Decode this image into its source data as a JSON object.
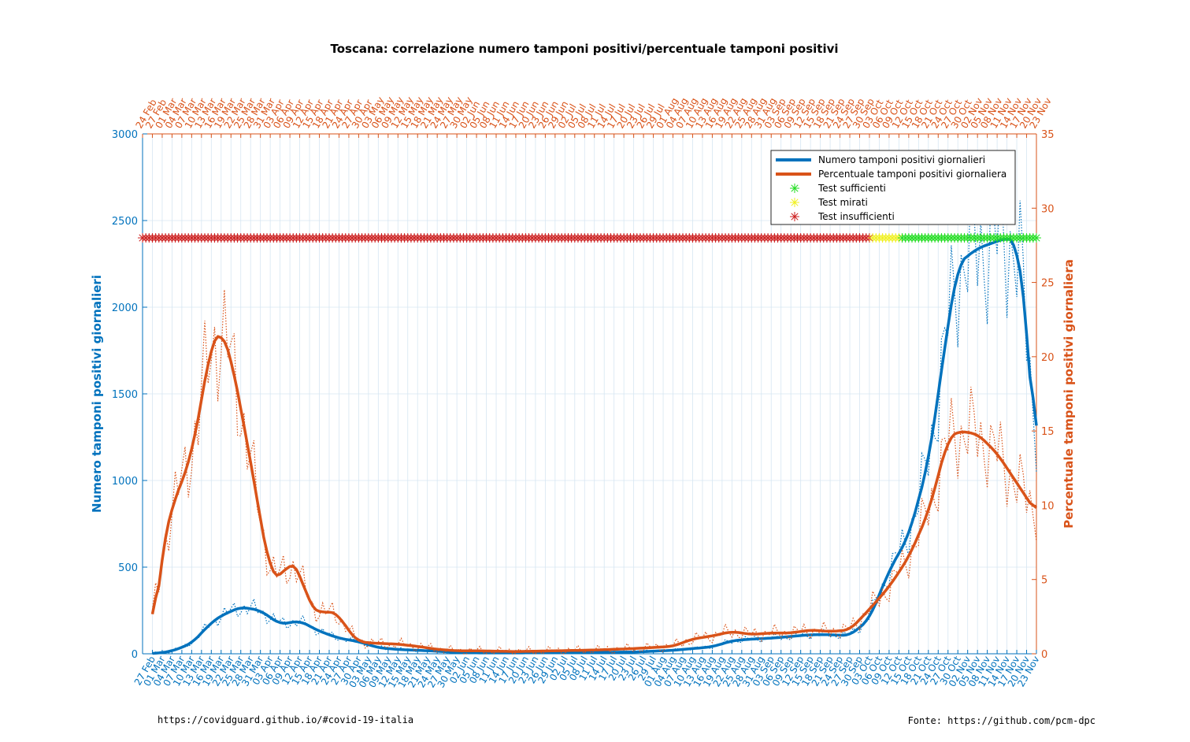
{
  "chart_data": {
    "type": "line",
    "title": "Toscana: correlazione numero tamponi positivi/percentuale tamponi positivi",
    "ylabel_left": "Numero tamponi positivi giornalieri",
    "ylabel_right": "Percentuale tamponi positivi giornaliera",
    "ylim_left": [
      0,
      3000
    ],
    "ylim_right": [
      0,
      35
    ],
    "yticks_left": [
      "0",
      "500",
      "1000",
      "1500",
      "2000",
      "2500",
      "3000"
    ],
    "yticks_right": [
      "0",
      "5",
      "10",
      "15",
      "20",
      "25",
      "30",
      "35"
    ],
    "grid": true,
    "legend_position": "top-right",
    "legend": [
      "Numero tamponi positivi giornalieri",
      "Percentuale tamponi positivi giornaliera",
      "Test sufficienti",
      "Test mirati",
      "Test insufficienti"
    ],
    "x_bottom_ticks": [
      "27 Feb",
      "01 Mar",
      "04 Mar",
      "07 Mar",
      "10 Mar",
      "13 Mar",
      "16 Mar",
      "19 Mar",
      "22 Mar",
      "25 Mar",
      "28 Mar",
      "31 Mar",
      "03 Apr",
      "06 Apr",
      "09 Apr",
      "12 Apr",
      "15 Apr",
      "18 Apr",
      "21 Apr",
      "24 Apr",
      "27 Apr",
      "30 Apr",
      "03 May",
      "06 May",
      "09 May",
      "12 May",
      "15 May",
      "18 May",
      "21 May",
      "24 May",
      "27 May",
      "30 May",
      "02 Jun",
      "05 Jun",
      "08 Jun",
      "11 Jun",
      "14 Jun",
      "17 Jun",
      "20 Jun",
      "23 Jun",
      "26 Jun",
      "29 Jun",
      "02 Jul",
      "05 Jul",
      "08 Jul",
      "11 Jul",
      "14 Jul",
      "17 Jul",
      "20 Jul",
      "23 Jul",
      "26 Jul",
      "29 Jul",
      "01 Aug",
      "04 Aug",
      "07 Aug",
      "10 Aug",
      "13 Aug",
      "16 Aug",
      "19 Aug",
      "22 Aug",
      "25 Aug",
      "28 Aug",
      "31 Aug",
      "03 Sep",
      "06 Sep",
      "09 Sep",
      "12 Sep",
      "15 Sep",
      "18 Sep",
      "21 Sep",
      "24 Sep",
      "27 Sep",
      "30 Sep",
      "03 Oct",
      "06 Oct",
      "09 Oct",
      "12 Oct",
      "15 Oct",
      "18 Oct",
      "21 Oct",
      "24 Oct",
      "27 Oct",
      "30 Oct",
      "02 Nov",
      "05 Nov",
      "08 Nov",
      "11 Nov",
      "14 Nov",
      "17 Nov",
      "20 Nov",
      "23 Nov"
    ],
    "x_top_ticks": [
      "24 Feb",
      "27 Feb",
      "01 Mar",
      "04 Mar",
      "07 Mar",
      "10 Mar",
      "13 Mar",
      "16 Mar",
      "19 Mar",
      "22 Mar",
      "25 Mar",
      "28 Mar",
      "31 Mar",
      "03 Apr",
      "06 Apr",
      "09 Apr",
      "12 Apr",
      "15 Apr",
      "18 Apr",
      "21 Apr",
      "24 Apr",
      "27 Apr",
      "30 Apr",
      "03 May",
      "06 May",
      "09 May",
      "12 May",
      "15 May",
      "18 May",
      "21 May",
      "24 May",
      "27 May",
      "30 May",
      "02 Jun",
      "05 Jun",
      "08 Jun",
      "11 Jun",
      "14 Jun",
      "17 Jun",
      "20 Jun",
      "23 Jun",
      "26 Jun",
      "29 Jun",
      "02 Jul",
      "05 Jul",
      "08 Jul",
      "11 Jul",
      "14 Jul",
      "17 Jul",
      "20 Jul",
      "23 Jul",
      "26 Jul",
      "29 Jul",
      "01 Aug",
      "04 Aug",
      "07 Aug",
      "10 Aug",
      "13 Aug",
      "16 Aug",
      "19 Aug",
      "22 Aug",
      "25 Aug",
      "28 Aug",
      "31 Aug",
      "03 Sep",
      "06 Sep",
      "09 Sep",
      "12 Sep",
      "15 Sep",
      "18 Sep",
      "21 Sep",
      "24 Sep",
      "27 Sep",
      "30 Sep",
      "03 Oct",
      "06 Oct",
      "09 Oct",
      "12 Oct",
      "15 Oct",
      "18 Oct",
      "21 Oct",
      "24 Oct",
      "27 Oct",
      "30 Oct",
      "02 Nov",
      "05 Nov",
      "08 Nov",
      "11 Nov",
      "14 Nov",
      "17 Nov",
      "20 Nov",
      "23 Nov"
    ],
    "series": [
      {
        "name": "Numero tamponi positivi giornalieri",
        "axis": "left",
        "color": "#0072BD",
        "style": "smoothed (solid) + raw daily (dotted)",
        "x": [
          "27 Feb",
          "04 Mar",
          "10 Mar",
          "16 Mar",
          "19 Mar",
          "25 Mar",
          "31 Mar",
          "06 Apr",
          "12 Apr",
          "18 Apr",
          "24 Apr",
          "30 Apr",
          "06 May",
          "12 May",
          "18 May",
          "24 May",
          "30 May",
          "05 Jun",
          "17 Jun",
          "29 Jun",
          "11 Jul",
          "23 Jul",
          "04 Aug",
          "10 Aug",
          "16 Aug",
          "22 Aug",
          "28 Aug",
          "03 Sep",
          "09 Sep",
          "15 Sep",
          "21 Sep",
          "27 Sep",
          "03 Oct",
          "09 Oct",
          "15 Oct",
          "21 Oct",
          "24 Oct",
          "27 Oct",
          "30 Oct",
          "05 Nov",
          "11 Nov",
          "14 Nov",
          "17 Nov",
          "20 Nov",
          "23 Nov"
        ],
        "values": [
          0,
          15,
          60,
          180,
          220,
          270,
          250,
          170,
          190,
          130,
          90,
          70,
          35,
          25,
          20,
          15,
          8,
          5,
          5,
          6,
          8,
          10,
          20,
          30,
          40,
          75,
          85,
          90,
          100,
          110,
          110,
          105,
          200,
          480,
          680,
          1100,
          1500,
          1900,
          2250,
          2340,
          2380,
          2400,
          2380,
          1950,
          1000
        ]
      },
      {
        "name": "Percentuale tamponi positivi giornaliera",
        "axis": "right",
        "color": "#D95319",
        "style": "smoothed (solid) + raw daily (dotted)",
        "x": [
          "27 Feb",
          "01 Mar",
          "04 Mar",
          "07 Mar",
          "10 Mar",
          "13 Mar",
          "16 Mar",
          "19 Mar",
          "22 Mar",
          "25 Mar",
          "28 Mar",
          "31 Mar",
          "03 Apr",
          "06 Apr",
          "09 Apr",
          "12 Apr",
          "15 Apr",
          "18 Apr",
          "21 Apr",
          "24 Apr",
          "27 Apr",
          "30 Apr",
          "06 May",
          "12 May",
          "18 May",
          "24 May",
          "30 May",
          "05 Jun",
          "17 Jun",
          "29 Jun",
          "11 Jul",
          "23 Jul",
          "04 Aug",
          "10 Aug",
          "16 Aug",
          "22 Aug",
          "28 Aug",
          "03 Sep",
          "09 Sep",
          "15 Sep",
          "21 Sep",
          "27 Sep",
          "03 Oct",
          "09 Oct",
          "15 Oct",
          "21 Oct",
          "24 Oct",
          "27 Oct",
          "30 Oct",
          "05 Nov",
          "11 Nov",
          "14 Nov",
          "17 Nov",
          "20 Nov",
          "23 Nov"
        ],
        "values": [
          0.5,
          7,
          10,
          11.5,
          13.5,
          17,
          21,
          21.8,
          20,
          16.5,
          13,
          9,
          5.5,
          5,
          6.3,
          5.5,
          3.3,
          2.7,
          2.9,
          2.6,
          1.5,
          0.8,
          0.7,
          0.65,
          0.5,
          0.3,
          0.2,
          0.2,
          0.15,
          0.2,
          0.25,
          0.35,
          0.5,
          1.0,
          1.2,
          1.5,
          1.3,
          1.4,
          1.4,
          1.6,
          1.5,
          1.6,
          3.0,
          4.5,
          6.5,
          9.5,
          12,
          14.5,
          15,
          14.8,
          13.5,
          12.5,
          11.5,
          10.5,
          9.5
        ]
      }
    ],
    "test_markers": [
      {
        "label": "Test insufficienti",
        "color": "#CC1F1F",
        "from": "24 Feb",
        "to": "03 Oct"
      },
      {
        "label": "Test mirati",
        "color": "#F0F020",
        "from": "04 Oct",
        "to": "12 Oct"
      },
      {
        "label": "Test sufficienti",
        "color": "#22DD22",
        "from": "13 Oct",
        "to": "23 Nov"
      }
    ],
    "footer_left": "https://covidguard.github.io/#covid-19-italia",
    "footer_right": "Fonte: https://github.com/pcm-dpc"
  }
}
